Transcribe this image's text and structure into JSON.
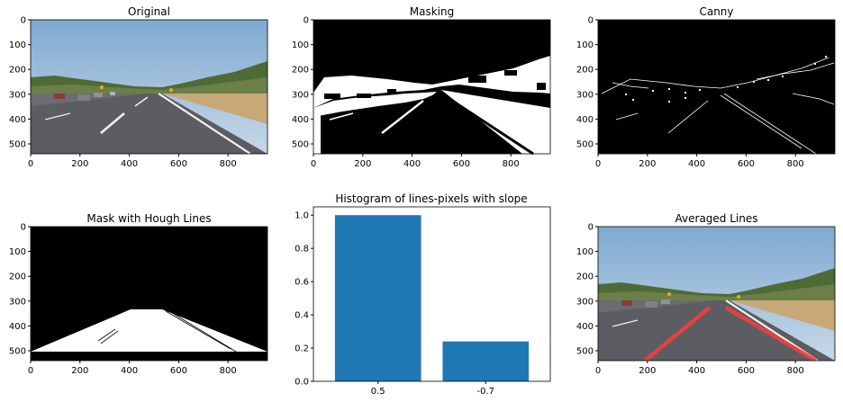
{
  "figure": {
    "panels": [
      {
        "title": "Original",
        "kind": "image",
        "xticks": [
          "0",
          "200",
          "400",
          "600",
          "800"
        ],
        "yticks": [
          "0",
          "100",
          "200",
          "300",
          "400",
          "500"
        ]
      },
      {
        "title": "Masking",
        "kind": "image",
        "xticks": [
          "0",
          "200",
          "400",
          "600",
          "800"
        ],
        "yticks": [
          "0",
          "100",
          "200",
          "300",
          "400",
          "500"
        ]
      },
      {
        "title": "Canny",
        "kind": "image",
        "xticks": [
          "0",
          "200",
          "400",
          "600",
          "800"
        ],
        "yticks": [
          "0",
          "100",
          "200",
          "300",
          "400",
          "500"
        ]
      },
      {
        "title": "Mask with Hough Lines",
        "kind": "image",
        "xticks": [
          "0",
          "200",
          "400",
          "600",
          "800"
        ],
        "yticks": [
          "0",
          "100",
          "200",
          "300",
          "400",
          "500"
        ]
      },
      {
        "title": "Histogram of lines-pixels with slope",
        "kind": "bar"
      },
      {
        "title": "Averaged Lines",
        "kind": "image",
        "xticks": [
          "0",
          "200",
          "400",
          "600",
          "800"
        ],
        "yticks": [
          "0",
          "100",
          "200",
          "300",
          "400",
          "500"
        ]
      }
    ]
  },
  "chart_data": {
    "type": "bar",
    "title": "Histogram of lines-pixels with slope",
    "categories": [
      "0.5",
      "-0.7"
    ],
    "values": [
      1.0,
      0.24
    ],
    "ylim": [
      0,
      1.05
    ],
    "yticks": [
      "0.0",
      "0.2",
      "0.4",
      "0.6",
      "0.8",
      "1.0"
    ],
    "bar_color": "#1f77b4",
    "grid": false,
    "xlabel": "",
    "ylabel": ""
  },
  "colors": {
    "bar": "#1f77b4",
    "sky": "#8eb4d6",
    "road": "#5b5d62",
    "lane_overlay": "#ff3b3b"
  }
}
